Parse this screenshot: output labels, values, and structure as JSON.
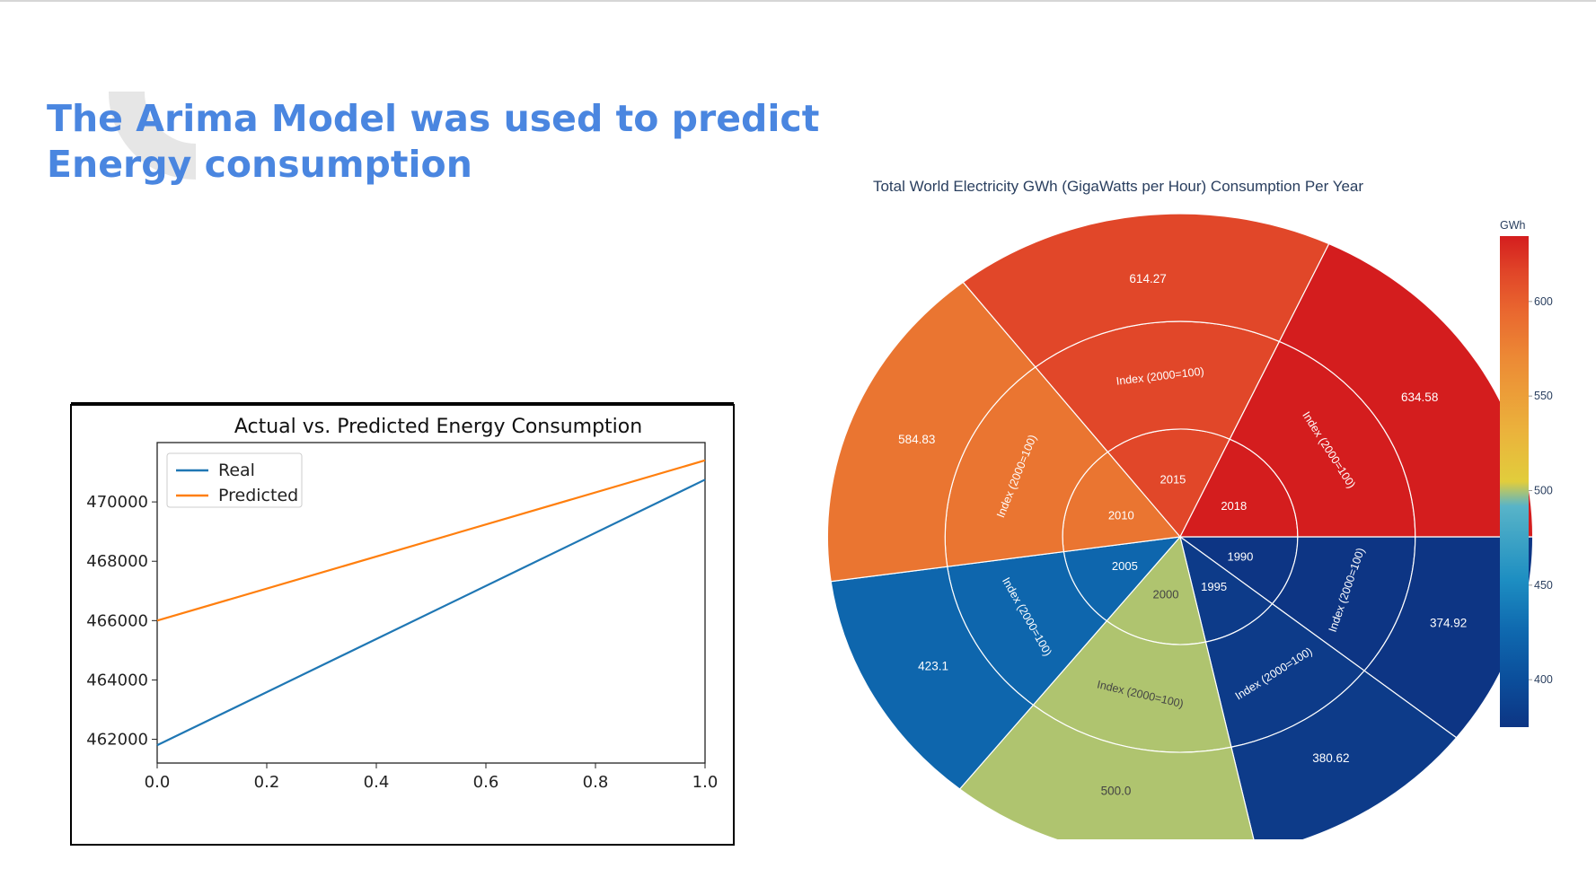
{
  "slide": {
    "title": "The Arima Model was used to predict Energy consumption"
  },
  "colors": {
    "title": "#4a86e0",
    "real": "#1f77b4",
    "predicted": "#ff7f0e"
  },
  "chart_data": [
    {
      "type": "line",
      "title": "Actual vs. Predicted Energy Consumption",
      "xlabel": "",
      "ylabel": "",
      "xlim": [
        0.0,
        1.0
      ],
      "ylim": [
        461200,
        472000
      ],
      "xticks": [
        "0.0",
        "0.2",
        "0.4",
        "0.6",
        "0.8",
        "1.0"
      ],
      "yticks": [
        "462000",
        "464000",
        "466000",
        "468000",
        "470000"
      ],
      "legend": "upper-left",
      "grid": false,
      "series": [
        {
          "name": "Real",
          "x": [
            0.0,
            1.0
          ],
          "y": [
            461800,
            470750
          ]
        },
        {
          "name": "Predicted",
          "x": [
            0.0,
            1.0
          ],
          "y": [
            466000,
            471400
          ]
        }
      ]
    },
    {
      "type": "sunburst",
      "title": "Total World Electricity GWh (GigaWatts per Hour) Consumption Per Year",
      "colorbar": {
        "title": "GWh",
        "ticks": [
          "400",
          "450",
          "500",
          "550",
          "600"
        ],
        "range": [
          374.92,
          634.58
        ]
      },
      "index_label": "Index (2000=100)",
      "years": [
        {
          "year": "1990",
          "value": 374.92
        },
        {
          "year": "1995",
          "value": 380.62
        },
        {
          "year": "2000",
          "value": 500.0
        },
        {
          "year": "2005",
          "value": 423.1
        },
        {
          "year": "2010",
          "value": 584.83
        },
        {
          "year": "2015",
          "value": 614.27
        },
        {
          "year": "2018",
          "value": 634.58
        }
      ],
      "outer_labels": [
        "374.92",
        "380.62",
        "500.0",
        "423.1",
        "584.83",
        "614.27",
        "634.58"
      ]
    }
  ]
}
